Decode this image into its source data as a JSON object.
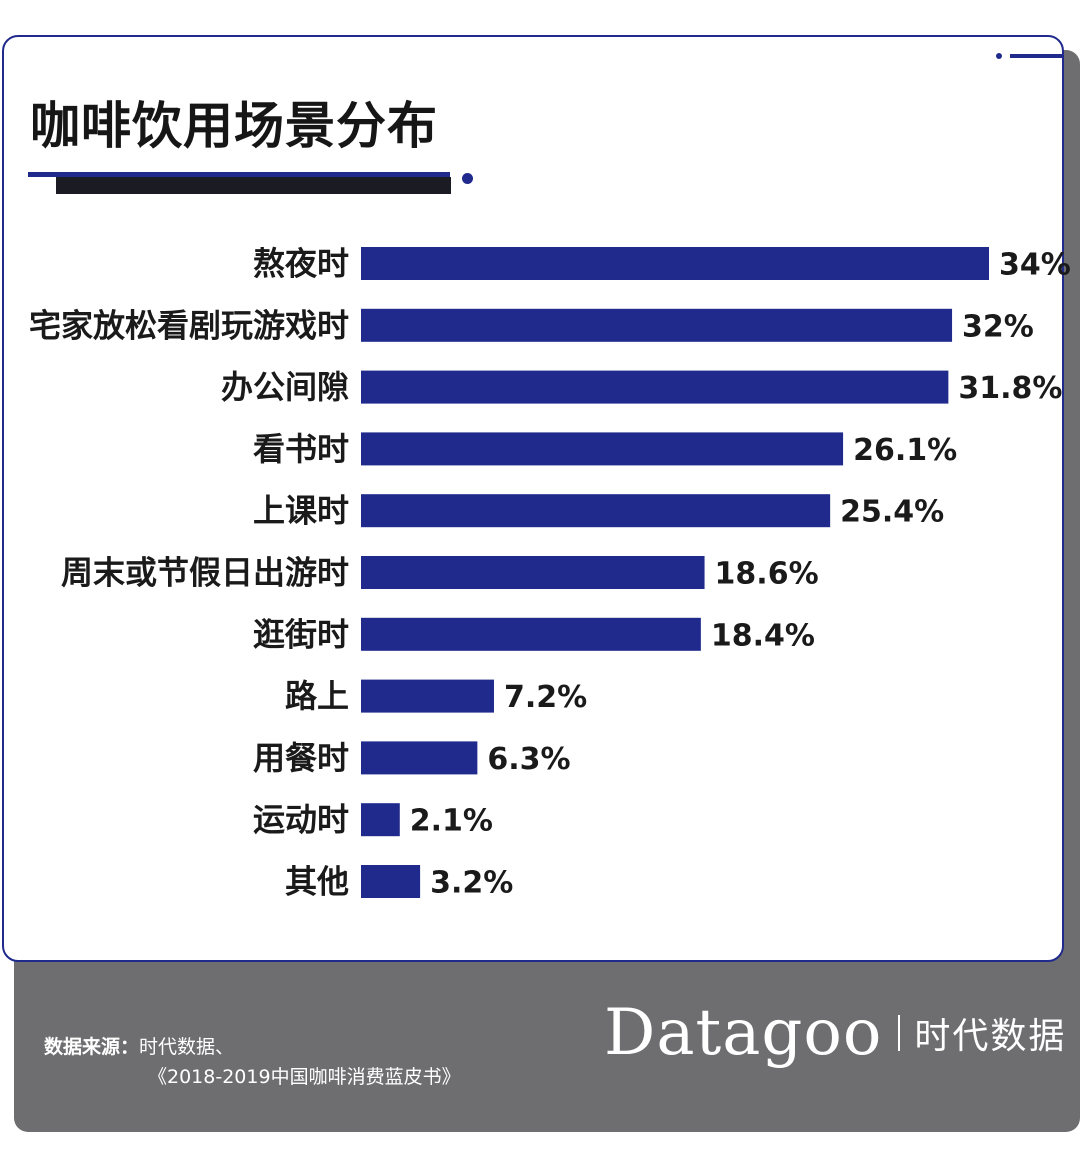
{
  "title": "咖啡饮用场景分布",
  "colors": {
    "accent": "#1f2a8c",
    "panel": "#6e6e70"
  },
  "chart_data": {
    "type": "bar",
    "orientation": "horizontal",
    "title": "咖啡饮用场景分布",
    "categories": [
      "熬夜时",
      "宅家放松看剧玩游戏时",
      "办公间隙",
      "看书时",
      "上课时",
      "周末或节假日出游时",
      "逛街时",
      "路上",
      "用餐时",
      "运动时",
      "其他"
    ],
    "values": [
      34,
      32,
      31.8,
      26.1,
      25.4,
      18.6,
      18.4,
      7.2,
      6.3,
      2.1,
      3.2
    ],
    "value_labels": [
      "34%",
      "32%",
      "31.8%",
      "26.1%",
      "25.4%",
      "18.6%",
      "18.4%",
      "7.2%",
      "6.3%",
      "2.1%",
      "3.2%"
    ],
    "xlim": [
      0,
      34
    ],
    "grid": false
  },
  "footer": {
    "source_label": "数据来源：",
    "source_line1": "时代数据、",
    "source_line2": "《2018-2019中国咖啡消费蓝皮书》",
    "brand_name": "Datagoo",
    "brand_cn": "时代数据"
  }
}
